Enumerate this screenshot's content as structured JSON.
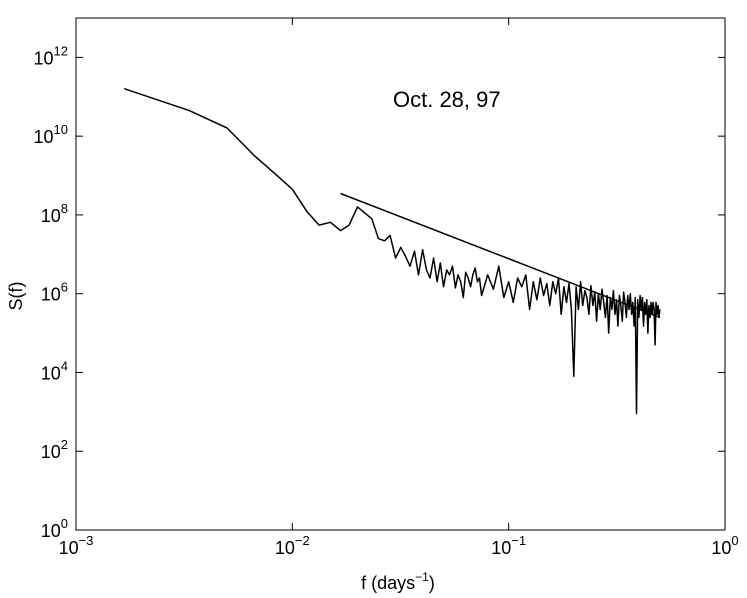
{
  "chart_data": {
    "type": "line",
    "title": "",
    "annotation": "Oct. 28, 97",
    "xlabel": "f (days",
    "xlabel_sup": "−1",
    "xlabel_end": ")",
    "ylabel": "S(f)",
    "x_scale": "log",
    "y_scale": "log",
    "xlim": [
      0.001,
      1
    ],
    "ylim": [
      1,
      10000000000000.0
    ],
    "grid": false,
    "legend": "none",
    "x_ticks": [
      {
        "value": 0.001,
        "base": "10",
        "exp": "−3"
      },
      {
        "value": 0.01,
        "base": "10",
        "exp": "−2"
      },
      {
        "value": 0.1,
        "base": "10",
        "exp": "−1"
      },
      {
        "value": 1,
        "base": "10",
        "exp": "0"
      }
    ],
    "y_ticks": [
      {
        "value": 1,
        "base": "10",
        "exp": "0"
      },
      {
        "value": 100,
        "base": "10",
        "exp": "2"
      },
      {
        "value": 10000,
        "base": "10",
        "exp": "4"
      },
      {
        "value": 1000000,
        "base": "10",
        "exp": "6"
      },
      {
        "value": 100000000,
        "base": "10",
        "exp": "8"
      },
      {
        "value": 10000000000,
        "base": "10",
        "exp": "10"
      },
      {
        "value": 1000000000000,
        "base": "10",
        "exp": "12"
      }
    ],
    "series": [
      {
        "color": "#000000",
        "x": [
          0.00167,
          0.00333,
          0.005,
          0.00667,
          0.00833,
          0.01,
          0.0117,
          0.0133,
          0.015,
          0.0167,
          0.0183,
          0.02,
          0.0217,
          0.0233,
          0.025,
          0.0267,
          0.0283,
          0.03,
          0.0317,
          0.0333,
          0.035,
          0.0367,
          0.0383,
          0.04,
          0.0417,
          0.0433,
          0.045,
          0.0467,
          0.0483,
          0.05,
          0.0517,
          0.0533,
          0.055,
          0.0567,
          0.0583,
          0.06,
          0.0617,
          0.0633,
          0.065,
          0.0667,
          0.0683,
          0.07,
          0.0717,
          0.0733,
          0.075,
          0.08,
          0.085,
          0.09,
          0.095,
          0.1,
          0.105,
          0.11,
          0.115,
          0.12,
          0.125,
          0.13,
          0.135,
          0.14,
          0.145,
          0.15,
          0.155,
          0.16,
          0.165,
          0.17,
          0.175,
          0.18,
          0.185,
          0.19,
          0.195,
          0.2,
          0.205,
          0.21,
          0.215,
          0.22,
          0.225,
          0.23,
          0.235,
          0.24,
          0.245,
          0.25,
          0.255,
          0.26,
          0.265,
          0.27,
          0.275,
          0.28,
          0.285,
          0.29,
          0.295,
          0.3,
          0.305,
          0.31,
          0.315,
          0.32,
          0.325,
          0.33,
          0.335,
          0.34,
          0.345,
          0.35,
          0.355,
          0.36,
          0.365,
          0.37,
          0.375,
          0.38,
          0.385,
          0.39,
          0.395,
          0.4,
          0.405,
          0.41,
          0.415,
          0.42,
          0.425,
          0.43,
          0.435,
          0.44,
          0.445,
          0.45,
          0.455,
          0.46,
          0.465,
          0.47,
          0.475,
          0.48,
          0.485,
          0.49,
          0.495,
          0.5
        ],
        "y": [
          160000000000.0,
          45000000000.0,
          16000000000.0,
          3200000000.0,
          1100000000.0,
          450000000.0,
          120000000.0,
          55000000.0,
          65000000.0,
          40000000.0,
          55000000.0,
          160000000.0,
          110000000.0,
          80000000.0,
          25000000.0,
          22000000.0,
          30000000.0,
          8000000.0,
          15000000.0,
          9000000.0,
          5000000.0,
          12000000.0,
          3000000.0,
          13000000.0,
          4000000.0,
          2500000.0,
          8000000.0,
          2000000.0,
          6000000.0,
          1500000.0,
          4000000.0,
          3000000.0,
          5000000.0,
          1400000.0,
          3000000.0,
          2000000.0,
          800000.0,
          3500000.0,
          2500000.0,
          1500000.0,
          3000000.0,
          4500000.0,
          2000000.0,
          2500000.0,
          900000.0,
          3000000.0,
          1300000.0,
          5000000.0,
          800000.0,
          2000000.0,
          600000.0,
          2500000.0,
          1500000.0,
          3000000.0,
          400000.0,
          2000000.0,
          700000.0,
          2500000.0,
          900000.0,
          1800000.0,
          500000.0,
          2000000.0,
          1000000.0,
          2500000.0,
          300000.0,
          1500000.0,
          600000.0,
          1800000.0,
          400000.0,
          8000.0,
          1500000.0,
          400000.0,
          2000000.0,
          500000.0,
          1200000.0,
          800000.0,
          300000.0,
          1600000.0,
          500000.0,
          1100000.0,
          200000.0,
          1000000.0,
          400000.0,
          1300000.0,
          600000.0,
          250000.0,
          900000.0,
          100000.0,
          800000.0,
          400000.0,
          1200000.0,
          300000.0,
          700000.0,
          150000.0,
          900000.0,
          500000.0,
          200000.0,
          1100000.0,
          600000.0,
          250000.0,
          900000.0,
          400000.0,
          1000000.0,
          300000.0,
          600000.0,
          150000.0,
          800000.0,
          900,
          700000.0,
          250000.0,
          900000.0,
          400000.0,
          800000.0,
          150000.0,
          600000.0,
          300000.0,
          700000.0,
          100000.0,
          500000.0,
          250000.0,
          600000.0,
          300000.0,
          600000.0,
          400000.0,
          50000.0,
          600000.0,
          300000.0,
          500000.0,
          250000.0,
          400000.0
        ]
      },
      {
        "color": "#000000",
        "x": [
          0.0167,
          0.5
        ],
        "y": [
          350000000.0,
          250000.0
        ]
      }
    ]
  }
}
